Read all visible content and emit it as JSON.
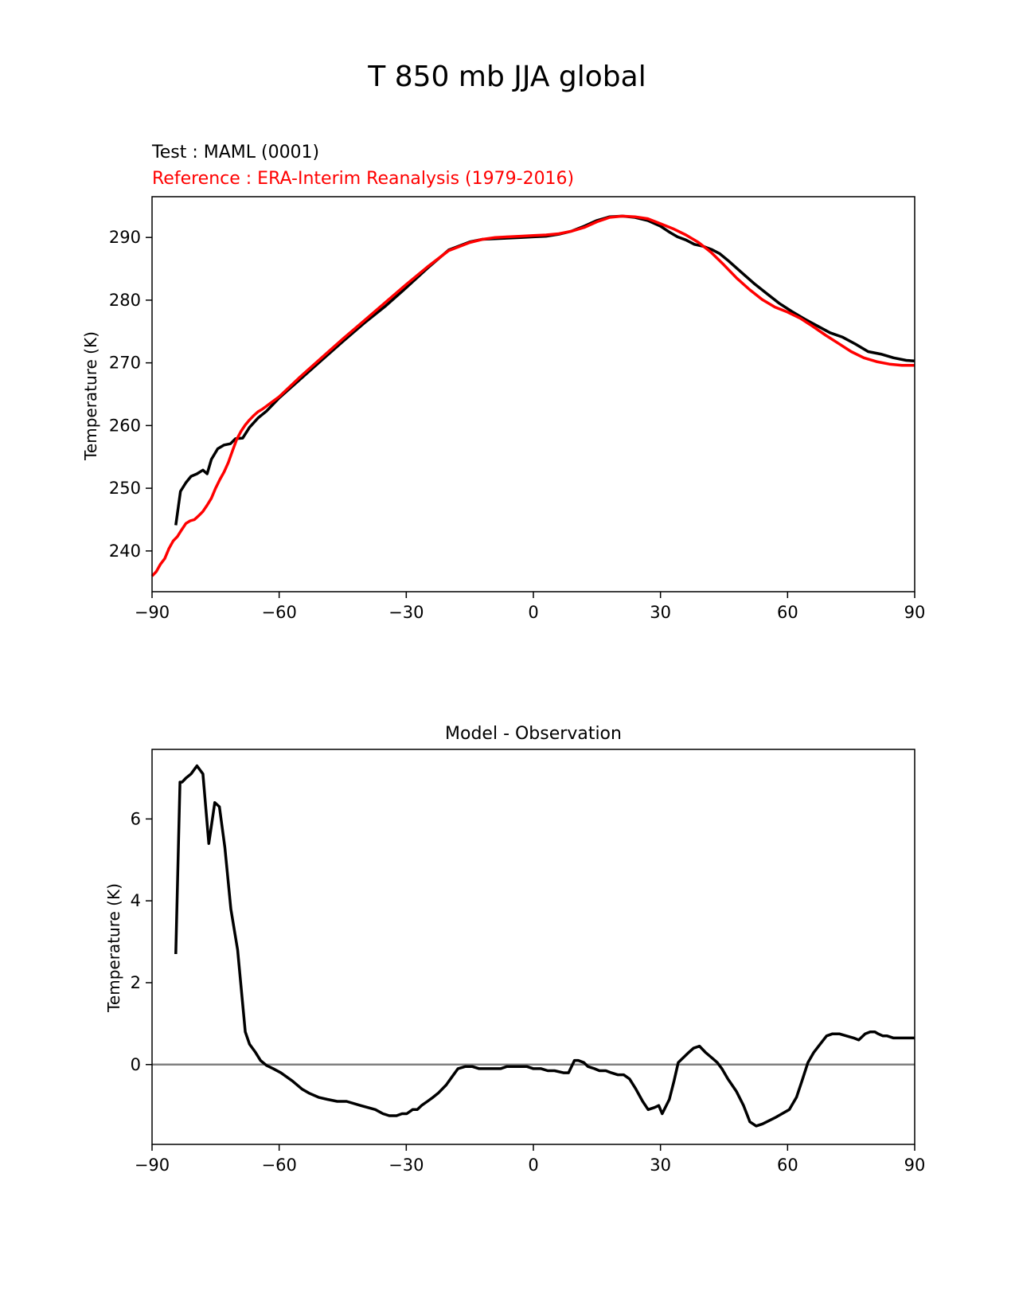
{
  "figure_title": "T 850 mb JJA global",
  "colors": {
    "test": "#000000",
    "reference": "#ff0000",
    "zero_line": "#808080",
    "axes": "#000000"
  },
  "chart_data": [
    {
      "type": "line",
      "test_label": "Test : MAML (0001)",
      "reference_label": "Reference : ERA-Interim Reanalysis (1979-2016)",
      "xlabel": "",
      "ylabel": "Temperature (K)",
      "xlim": [
        -90,
        90
      ],
      "ylim": [
        233.5,
        296.5
      ],
      "xticks": [
        -90,
        -60,
        -30,
        0,
        30,
        60,
        90
      ],
      "xtick_labels": [
        "−90",
        "−60",
        "−30",
        "0",
        "30",
        "60",
        "90"
      ],
      "yticks": [
        240,
        250,
        260,
        270,
        280,
        290
      ],
      "ytick_labels": [
        "240",
        "250",
        "260",
        "270",
        "280",
        "290"
      ],
      "series": [
        {
          "name": "Test : MAML (0001)",
          "color": "#000000",
          "x": [
            -84.4,
            -83.3,
            -82,
            -80.8,
            -79.4,
            -78,
            -77,
            -76,
            -74.5,
            -73,
            -71.5,
            -70.3,
            -68.6,
            -67,
            -65,
            -63,
            -60,
            -55,
            -50,
            -45,
            -40,
            -35,
            -30,
            -25,
            -20,
            -15,
            -12,
            -9,
            -6,
            -3,
            0,
            3,
            6,
            9,
            12,
            15,
            18,
            21,
            24,
            27,
            30,
            32,
            34,
            36,
            38,
            40,
            42,
            44,
            46,
            48,
            50,
            52,
            55,
            58,
            61,
            64,
            67,
            70,
            73,
            76,
            79,
            82,
            85,
            88,
            90
          ],
          "values": [
            244.1,
            249.5,
            250.9,
            251.9,
            252.3,
            252.9,
            252.3,
            254.6,
            256.3,
            256.9,
            257.1,
            257.9,
            258.0,
            259.7,
            261.2,
            262.3,
            264.4,
            267.4,
            270.4,
            273.4,
            276.3,
            279.0,
            282.0,
            285.1,
            288.0,
            289.3,
            289.7,
            289.8,
            289.9,
            290.0,
            290.1,
            290.2,
            290.5,
            291.0,
            291.8,
            292.7,
            293.3,
            293.4,
            293.2,
            292.7,
            291.8,
            290.9,
            290.1,
            289.6,
            288.9,
            288.6,
            288.1,
            287.4,
            286.3,
            285.1,
            283.9,
            282.7,
            281.1,
            279.5,
            278.2,
            277.0,
            275.9,
            274.8,
            274.1,
            273.0,
            271.8,
            271.4,
            270.8,
            270.4,
            270.3
          ]
        },
        {
          "name": "Reference : ERA-Interim Reanalysis (1979-2016)",
          "color": "#ff0000",
          "x": [
            -90,
            -89,
            -88,
            -87,
            -86,
            -85,
            -84,
            -83,
            -82,
            -81,
            -80,
            -79,
            -78,
            -77,
            -76,
            -75,
            -74,
            -73,
            -72,
            -71,
            -70,
            -69,
            -68,
            -67,
            -66,
            -65,
            -64,
            -63,
            -62,
            -61,
            -60,
            -55,
            -50,
            -45,
            -40,
            -35,
            -30,
            -25,
            -20,
            -15,
            -12,
            -9,
            -6,
            -3,
            0,
            3,
            6,
            9,
            12,
            15,
            18,
            21,
            24,
            27,
            30,
            33,
            36,
            39,
            42,
            45,
            48,
            51,
            54,
            57,
            60,
            63,
            66,
            69,
            72,
            75,
            78,
            81,
            84,
            87,
            90
          ],
          "values": [
            236.0,
            236.7,
            237.9,
            238.8,
            240.4,
            241.6,
            242.3,
            243.4,
            244.4,
            244.8,
            245.0,
            245.6,
            246.3,
            247.3,
            248.4,
            250.0,
            251.4,
            252.6,
            254.1,
            256.0,
            257.8,
            259.1,
            260.1,
            260.9,
            261.6,
            262.2,
            262.6,
            263.1,
            263.6,
            264.1,
            264.6,
            267.8,
            270.8,
            273.8,
            276.7,
            279.6,
            282.5,
            285.3,
            287.9,
            289.2,
            289.7,
            290.0,
            290.1,
            290.2,
            290.3,
            290.4,
            290.6,
            291.0,
            291.6,
            292.5,
            293.2,
            293.4,
            293.3,
            293.0,
            292.2,
            291.4,
            290.4,
            289.2,
            287.6,
            285.6,
            283.5,
            281.7,
            280.1,
            278.9,
            278.1,
            277.1,
            275.8,
            274.4,
            273.1,
            271.8,
            270.8,
            270.2,
            269.8,
            269.6,
            269.6
          ]
        }
      ]
    },
    {
      "type": "line",
      "title": "Model - Observation",
      "xlabel": "",
      "ylabel": "Temperature (K)",
      "xlim": [
        -90,
        90
      ],
      "ylim": [
        -1.95,
        7.7
      ],
      "xticks": [
        -90,
        -60,
        -30,
        0,
        30,
        60,
        90
      ],
      "xtick_labels": [
        "−90",
        "−60",
        "−30",
        "0",
        "30",
        "60",
        "90"
      ],
      "yticks": [
        0,
        2,
        4,
        6
      ],
      "ytick_labels": [
        "0",
        "2",
        "4",
        "6"
      ],
      "zero_line": 0,
      "series": [
        {
          "name": "Model - Observation",
          "color": "#000000",
          "x": [
            -84.4,
            -83.4,
            -82.9,
            -82,
            -80.8,
            -79.4,
            -78,
            -76.6,
            -75.2,
            -74.1,
            -72.8,
            -71.4,
            -69.8,
            -68,
            -67,
            -65.6,
            -64.4,
            -63,
            -61.4,
            -59.6,
            -56.9,
            -54.6,
            -52.9,
            -50.7,
            -48.6,
            -46.3,
            -44.1,
            -40.8,
            -37.3,
            -35.5,
            -34,
            -32.3,
            -31,
            -29.9,
            -28.5,
            -27.4,
            -26.4,
            -25,
            -23.7,
            -22.5,
            -20.6,
            -19.2,
            -17.8,
            -16.1,
            -14.4,
            -12.8,
            -11.2,
            -9.5,
            -7.7,
            -6.3,
            -4.5,
            -3,
            -1.5,
            0,
            1.8,
            3.4,
            5,
            7.1,
            8.3,
            9.7,
            10.6,
            11.9,
            12.9,
            14.4,
            15.6,
            17.1,
            18.4,
            19.9,
            21.3,
            22.7,
            24.2,
            25.8,
            27.1,
            28.6,
            29.6,
            30.4,
            32.1,
            33.2,
            34.2,
            36.7,
            37.8,
            39.2,
            40.6,
            42.3,
            43.4,
            44.5,
            45.9,
            47.9,
            49.6,
            51.1,
            52.6,
            54.1,
            57,
            60.4,
            62.1,
            63.4,
            64.8,
            66.2,
            67.7,
            69.2,
            70.6,
            72.2,
            73.9,
            75.6,
            76.8,
            78.3,
            79.5,
            80.6,
            81.4,
            82.5,
            83.5,
            85,
            86.5,
            88.3,
            90
          ],
          "values": [
            2.7,
            6.9,
            6.9,
            7.0,
            7.1,
            7.3,
            7.1,
            5.4,
            6.4,
            6.3,
            5.3,
            3.8,
            2.8,
            0.8,
            0.5,
            0.3,
            0.1,
            -0.02,
            -0.1,
            -0.2,
            -0.4,
            -0.6,
            -0.7,
            -0.8,
            -0.85,
            -0.9,
            -0.9,
            -1.0,
            -1.1,
            -1.2,
            -1.25,
            -1.25,
            -1.2,
            -1.2,
            -1.1,
            -1.1,
            -1.0,
            -0.9,
            -0.8,
            -0.7,
            -0.5,
            -0.3,
            -0.1,
            -0.05,
            -0.05,
            -0.1,
            -0.1,
            -0.1,
            -0.1,
            -0.05,
            -0.05,
            -0.05,
            -0.05,
            -0.1,
            -0.1,
            -0.15,
            -0.15,
            -0.2,
            -0.2,
            0.1,
            0.1,
            0.05,
            -0.05,
            -0.1,
            -0.15,
            -0.15,
            -0.2,
            -0.25,
            -0.25,
            -0.35,
            -0.6,
            -0.9,
            -1.1,
            -1.05,
            -1.0,
            -1.2,
            -0.85,
            -0.4,
            0.05,
            0.3,
            0.4,
            0.45,
            0.3,
            0.15,
            0.05,
            -0.1,
            -0.35,
            -0.65,
            -1.0,
            -1.4,
            -1.5,
            -1.45,
            -1.3,
            -1.1,
            -0.8,
            -0.4,
            0.05,
            0.3,
            0.5,
            0.7,
            0.75,
            0.75,
            0.7,
            0.65,
            0.6,
            0.75,
            0.8,
            0.8,
            0.75,
            0.7,
            0.7,
            0.65,
            0.65,
            0.65,
            0.65
          ]
        }
      ]
    }
  ]
}
